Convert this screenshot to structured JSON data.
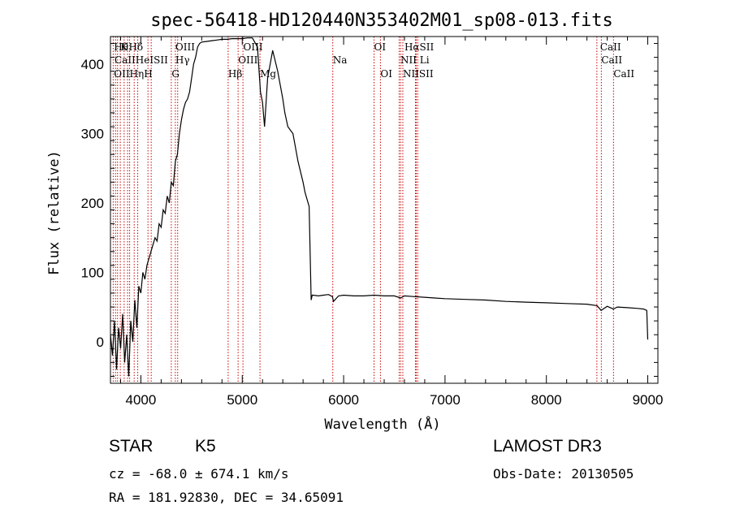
{
  "chart_data": {
    "type": "line",
    "title": "spec-56418-HD120440N353402M01_sp08-013.fits",
    "xlabel": "Wavelength (Å)",
    "ylabel": "Flux (relative)",
    "xlim": [
      3700,
      9100
    ],
    "ylim": [
      -60,
      440
    ],
    "xticks": [
      4000,
      5000,
      6000,
      7000,
      8000,
      9000
    ],
    "yticks": [
      0,
      100,
      200,
      300,
      400
    ],
    "xtick_labels": [
      "4000",
      "5000",
      "6000",
      "7000",
      "8000",
      "9000"
    ],
    "ytick_labels": [
      "0",
      "100",
      "200",
      "300",
      "400"
    ],
    "grid": false,
    "series": [
      {
        "x": [
          3700,
          3720,
          3740,
          3760,
          3780,
          3800,
          3820,
          3840,
          3860,
          3880,
          3900,
          3920,
          3940,
          3960,
          3980,
          4000,
          4020,
          4040,
          4060,
          4080,
          4100,
          4120,
          4140,
          4160,
          4180,
          4200,
          4220,
          4240,
          4260,
          4280,
          4300,
          4320,
          4340,
          4360,
          4380,
          4400,
          4420,
          4440,
          4460,
          4480,
          4500,
          4520,
          4540,
          4560,
          4580,
          4600,
          4650,
          4700,
          4750,
          4800,
          4850,
          4900,
          4950,
          5000,
          5050,
          5100,
          5150,
          5180,
          5200,
          5220,
          5250,
          5300,
          5350,
          5400,
          5420,
          5450,
          5500,
          5550,
          5600,
          5620,
          5640,
          5660,
          5680,
          5690,
          5700,
          5750,
          5800,
          5850,
          5890,
          5900,
          5950,
          6000,
          6100,
          6200,
          6300,
          6400,
          6500,
          6563,
          6600,
          6700,
          6800,
          6900,
          7000,
          7200,
          7400,
          7600,
          7800,
          8000,
          8200,
          8400,
          8500,
          8540,
          8600,
          8660,
          8700,
          8800,
          8900,
          8960,
          8990,
          9000
        ],
        "y": [
          10,
          -20,
          30,
          -40,
          20,
          -10,
          40,
          -30,
          10,
          -50,
          30,
          0,
          60,
          20,
          80,
          70,
          100,
          90,
          110,
          120,
          130,
          140,
          150,
          145,
          170,
          165,
          190,
          185,
          210,
          200,
          230,
          225,
          260,
          270,
          300,
          320,
          335,
          345,
          350,
          360,
          380,
          400,
          410,
          425,
          430,
          432,
          433,
          434,
          435,
          436,
          436,
          437,
          437,
          437,
          438,
          438,
          425,
          360,
          345,
          310,
          380,
          420,
          390,
          350,
          330,
          310,
          300,
          260,
          230,
          215,
          205,
          195,
          60,
          67,
          67,
          66,
          67,
          68,
          65,
          58,
          66,
          67,
          66,
          66,
          67,
          66,
          66,
          63,
          66,
          65,
          64,
          63,
          62,
          61,
          60,
          58,
          57,
          56,
          55,
          54,
          52,
          45,
          51,
          47,
          50,
          49,
          48,
          47,
          45,
          3
        ]
      }
    ],
    "line_labels": [
      {
        "x": 3734,
        "row": 1,
        "text": "Hθ",
        "color": "#000"
      },
      {
        "x": 3798,
        "row": 1,
        "text": "K",
        "color": "#000"
      },
      {
        "x": 3880,
        "row": 1,
        "text": "Hδ",
        "color": "#000"
      },
      {
        "x": 4340,
        "row": 1,
        "text": "OIII",
        "color": "#000"
      },
      {
        "x": 5010,
        "row": 1,
        "text": "OIII",
        "color": "#000"
      },
      {
        "x": 6300,
        "row": 1,
        "text": "OI",
        "color": "#000"
      },
      {
        "x": 6600,
        "row": 1,
        "text": "HαSII",
        "color": "#000"
      },
      {
        "x": 8530,
        "row": 1,
        "text": "CaII",
        "color": "#000"
      },
      {
        "x": 3740,
        "row": 2,
        "text": "CaIIHeISII",
        "color": "#000"
      },
      {
        "x": 4340,
        "row": 2,
        "text": "Hγ",
        "color": "#000"
      },
      {
        "x": 4960,
        "row": 2,
        "text": "OIII",
        "color": "#000"
      },
      {
        "x": 5893,
        "row": 2,
        "text": "Na",
        "color": "#000"
      },
      {
        "x": 6560,
        "row": 2,
        "text": "NII Li",
        "color": "#000"
      },
      {
        "x": 8542,
        "row": 2,
        "text": "CaII",
        "color": "#000"
      },
      {
        "x": 3734,
        "row": 3,
        "text": "OIIHηH",
        "color": "#000"
      },
      {
        "x": 4304,
        "row": 3,
        "text": "G",
        "color": "#000"
      },
      {
        "x": 4861,
        "row": 3,
        "text": "Hβ",
        "color": "#000"
      },
      {
        "x": 5175,
        "row": 3,
        "text": "Mg",
        "color": "#000"
      },
      {
        "x": 6363,
        "row": 3,
        "text": "OI",
        "color": "#000"
      },
      {
        "x": 6584,
        "row": 3,
        "text": "NIISII",
        "color": "#000"
      },
      {
        "x": 8662,
        "row": 3,
        "text": "CaII",
        "color": "#000"
      }
    ],
    "line_markers": [
      3727,
      3750,
      3770,
      3797,
      3835,
      3869,
      3889,
      3934,
      3969,
      4070,
      4102,
      4300,
      4340,
      4363,
      4861,
      4959,
      5007,
      5175,
      5893,
      6300,
      6363,
      6548,
      6563,
      6584,
      6708,
      6716,
      6731,
      8498,
      8542,
      8662
    ],
    "marker_color": "#cc0000"
  },
  "info": {
    "class_label": "STAR",
    "subclass_label": "K5",
    "survey": "LAMOST DR3",
    "cz_text": "cz = -68.0 ± 674.1 km/s",
    "obs_date": "Obs-Date: 20130505",
    "coords": "RA = 181.92830, DEC =  34.65091"
  }
}
